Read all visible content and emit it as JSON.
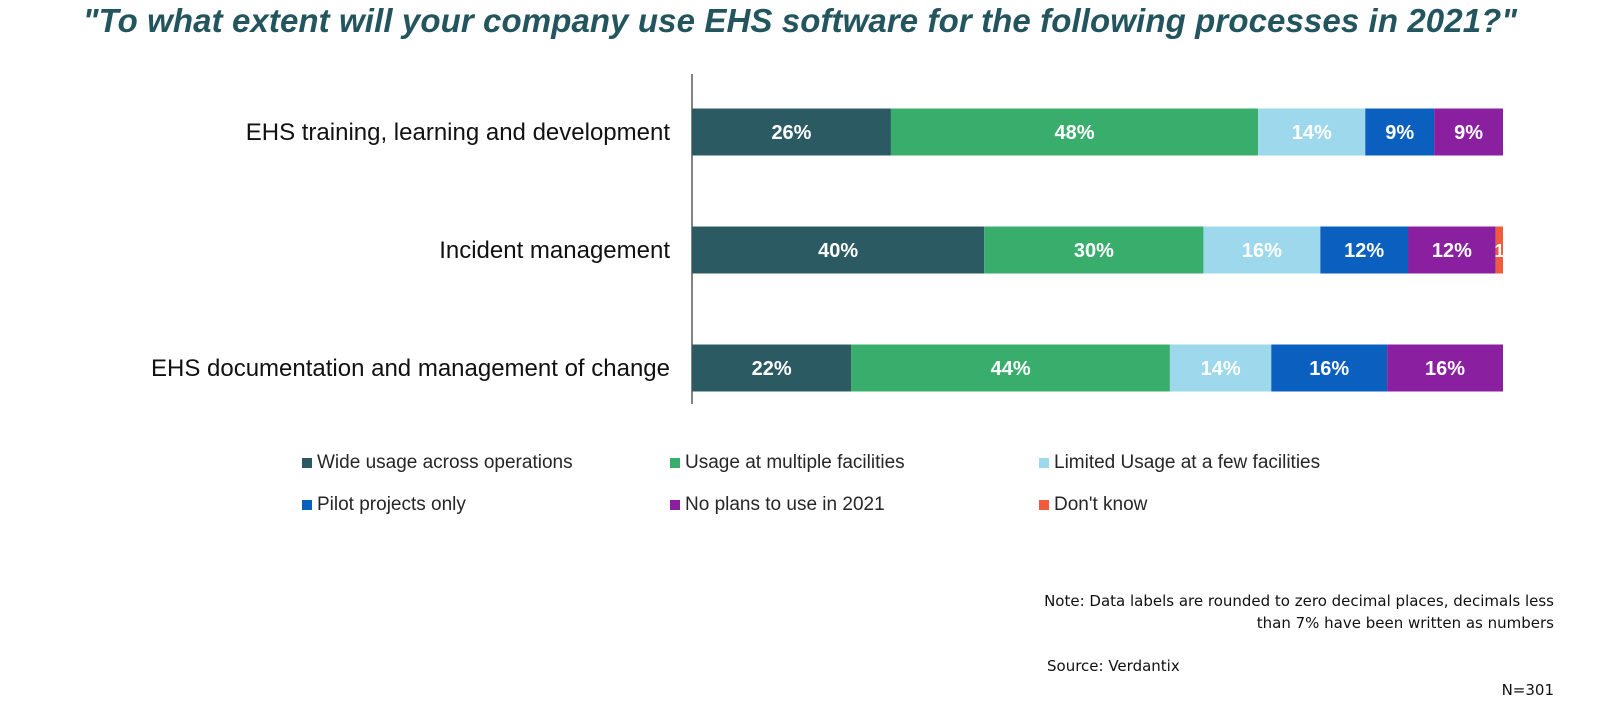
{
  "chart_data": {
    "type": "bar",
    "orientation": "horizontal",
    "stacked": true,
    "title": "\"To what extent will your company use EHS software for the following processes in 2021?\"",
    "categories": [
      "EHS training, learning and development",
      "Incident management",
      "EHS documentation and management of change"
    ],
    "series": [
      {
        "name": "Wide usage across operations",
        "color": "#2b5a63",
        "values": [
          26,
          40,
          22
        ],
        "labels": [
          "26%",
          "40%",
          "22%"
        ]
      },
      {
        "name": "Usage at multiple facilities",
        "color": "#39ad6b",
        "values": [
          48,
          30,
          44
        ],
        "labels": [
          "48%",
          "30%",
          "44%"
        ]
      },
      {
        "name": "Limited Usage at a few facilities",
        "color": "#9dd8ec",
        "values": [
          14,
          16,
          14
        ],
        "labels": [
          "14%",
          "16%",
          "14%"
        ]
      },
      {
        "name": "Pilot projects only",
        "color": "#0a5fbf",
        "values": [
          9,
          12,
          16
        ],
        "labels": [
          "9%",
          "12%",
          "16%"
        ]
      },
      {
        "name": "No plans to use in 2021",
        "color": "#8a1fa0",
        "values": [
          9,
          12,
          16
        ],
        "labels": [
          "9%",
          "12%",
          "16%"
        ]
      },
      {
        "name": "Don't know",
        "color": "#f15a3a",
        "values": [
          0,
          1,
          0
        ],
        "labels": [
          "",
          "1",
          ""
        ]
      }
    ],
    "legend_position": "bottom",
    "grid": false
  },
  "note": {
    "line1": "Note: Data labels are rounded to zero decimal places, decimals less",
    "line2": "than 7% have been written as numbers"
  },
  "source": "Source: Verdantix",
  "sample": "N=301"
}
